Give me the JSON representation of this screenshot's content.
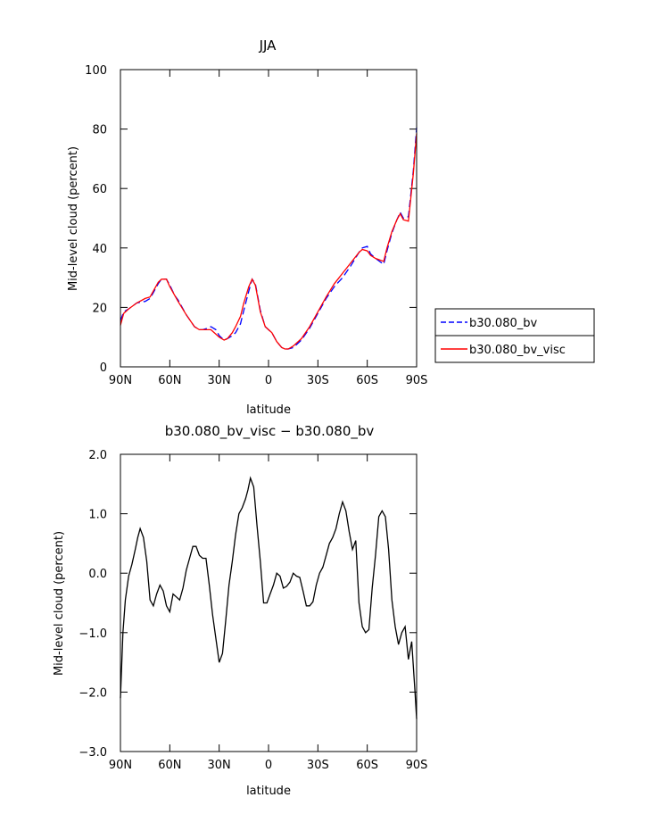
{
  "chart_data": [
    {
      "type": "line",
      "title": "JJA",
      "xlabel": "latitude",
      "ylabel": "Mid-level cloud (percent)",
      "xlim": [
        90,
        -90
      ],
      "ylim": [
        0,
        100
      ],
      "xticks": [
        {
          "value": 90,
          "label": "90N"
        },
        {
          "value": 60,
          "label": "60N"
        },
        {
          "value": 30,
          "label": "30N"
        },
        {
          "value": 0,
          "label": "0"
        },
        {
          "value": -30,
          "label": "30S"
        },
        {
          "value": -60,
          "label": "60S"
        },
        {
          "value": -90,
          "label": "90S"
        }
      ],
      "yticks": [
        {
          "value": 0,
          "label": "0"
        },
        {
          "value": 20,
          "label": "20"
        },
        {
          "value": 40,
          "label": "40"
        },
        {
          "value": 60,
          "label": "60"
        },
        {
          "value": 80,
          "label": "80"
        },
        {
          "value": 100,
          "label": "100"
        }
      ],
      "legend_position": "right",
      "series": [
        {
          "name": "b30.080_bv",
          "color": "#0000ff",
          "dash": "dashed",
          "x": [
            90,
            88,
            85,
            80,
            75,
            72,
            70,
            67,
            65,
            62,
            60,
            57,
            55,
            50,
            45,
            42,
            40,
            37,
            35,
            32,
            30,
            27,
            25,
            22,
            20,
            17,
            15,
            12,
            10,
            8,
            7,
            5,
            2,
            0,
            -2,
            -5,
            -8,
            -10,
            -12,
            -15,
            -18,
            -20,
            -25,
            -30,
            -35,
            -40,
            -45,
            -50,
            -55,
            -57,
            -60,
            -62,
            -65,
            -70,
            -72,
            -75,
            -78,
            -80,
            -82,
            -85,
            -88,
            -90
          ],
          "y": [
            15.5,
            18.5,
            19.5,
            21.5,
            22.0,
            23.0,
            25.0,
            28.0,
            29.5,
            29.5,
            27.5,
            24.0,
            22.5,
            17.5,
            13.5,
            12.5,
            12.5,
            13.0,
            13.5,
            12.5,
            10.5,
            9.0,
            9.5,
            10.5,
            11.5,
            14.5,
            19.0,
            25.5,
            29.5,
            28.0,
            25.0,
            19.0,
            13.5,
            12.5,
            11.5,
            8.5,
            6.5,
            6.0,
            6.0,
            6.5,
            8.0,
            9.0,
            13.0,
            18.0,
            23.0,
            27.0,
            30.0,
            34.0,
            38.5,
            40.0,
            40.5,
            38.0,
            36.5,
            34.5,
            39.0,
            45.0,
            49.5,
            52.0,
            50.0,
            50.5,
            66.0,
            80.5
          ]
        },
        {
          "name": "b30.080_bv_visc",
          "color": "#ff0000",
          "dash": "solid",
          "x": [
            90,
            88,
            85,
            80,
            75,
            72,
            70,
            67,
            65,
            62,
            60,
            57,
            55,
            50,
            45,
            42,
            40,
            37,
            35,
            32,
            30,
            27,
            25,
            22,
            20,
            17,
            15,
            12,
            10,
            8,
            7,
            5,
            2,
            0,
            -2,
            -5,
            -8,
            -10,
            -12,
            -15,
            -18,
            -20,
            -25,
            -30,
            -35,
            -40,
            -45,
            -50,
            -55,
            -57,
            -60,
            -62,
            -65,
            -70,
            -72,
            -75,
            -78,
            -80,
            -82,
            -85,
            -88,
            -90
          ],
          "y": [
            14.0,
            18.0,
            19.5,
            21.5,
            23.0,
            23.5,
            25.5,
            28.5,
            29.5,
            29.5,
            27.0,
            24.0,
            22.0,
            17.5,
            13.5,
            12.5,
            12.5,
            12.5,
            12.5,
            11.0,
            10.0,
            9.0,
            9.5,
            11.5,
            13.5,
            17.0,
            21.5,
            27.0,
            29.5,
            27.5,
            24.5,
            18.5,
            13.5,
            12.5,
            11.5,
            8.5,
            6.5,
            6.0,
            6.0,
            7.0,
            8.5,
            9.5,
            13.5,
            18.5,
            23.5,
            28.0,
            31.5,
            35.0,
            38.5,
            39.5,
            39.0,
            37.5,
            36.5,
            35.5,
            40.0,
            45.5,
            49.5,
            51.5,
            49.5,
            49.0,
            65.0,
            78.5
          ]
        }
      ]
    },
    {
      "type": "line",
      "title": "b30.080_bv_visc − b30.080_bv",
      "xlabel": "latitude",
      "ylabel": "Mid-level cloud (percent)",
      "xlim": [
        90,
        -90
      ],
      "ylim": [
        -3,
        2
      ],
      "xticks": [
        {
          "value": 90,
          "label": "90N"
        },
        {
          "value": 60,
          "label": "60N"
        },
        {
          "value": 30,
          "label": "30N"
        },
        {
          "value": 0,
          "label": "0"
        },
        {
          "value": -30,
          "label": "30S"
        },
        {
          "value": -60,
          "label": "60S"
        },
        {
          "value": -90,
          "label": "90S"
        }
      ],
      "yticks": [
        {
          "value": 2.0,
          "label": "2.0"
        },
        {
          "value": 1.0,
          "label": "1.0"
        },
        {
          "value": 0.0,
          "label": "0.0"
        },
        {
          "value": -1.0,
          "label": "−1.0"
        },
        {
          "value": -2.0,
          "label": "−2.0"
        },
        {
          "value": -3.0,
          "label": "−3.0"
        }
      ],
      "series": [
        {
          "name": "",
          "color": "#000000",
          "dash": "solid",
          "x": [
            90,
            88.5,
            87,
            85,
            83,
            81,
            79.5,
            78,
            76,
            74,
            72,
            70,
            68,
            66,
            64,
            62,
            60,
            58,
            56,
            54,
            52,
            50,
            48,
            46,
            44,
            42,
            40,
            38,
            36,
            34,
            32,
            30,
            28,
            26,
            24,
            22,
            20,
            18,
            16,
            14,
            12.5,
            11,
            9,
            7,
            5,
            3,
            1,
            -1,
            -3,
            -5,
            -7,
            -9,
            -11,
            -13,
            -15,
            -17,
            -19,
            -21,
            -23,
            -25,
            -27,
            -29,
            -31,
            -33,
            -35,
            -37,
            -39,
            -41,
            -43,
            -45,
            -47,
            -49,
            -51,
            -53,
            -55,
            -57,
            -59,
            -61,
            -63,
            -65,
            -67,
            -69,
            -71,
            -73,
            -75,
            -77,
            -79,
            -81,
            -83,
            -85,
            -87,
            -89,
            -90
          ],
          "y": [
            -2.1,
            -1.0,
            -0.45,
            -0.05,
            0.15,
            0.4,
            0.6,
            0.75,
            0.6,
            0.2,
            -0.45,
            -0.55,
            -0.35,
            -0.2,
            -0.3,
            -0.55,
            -0.65,
            -0.35,
            -0.4,
            -0.45,
            -0.25,
            0.05,
            0.25,
            0.45,
            0.45,
            0.3,
            0.25,
            0.25,
            -0.2,
            -0.7,
            -1.1,
            -1.5,
            -1.35,
            -0.8,
            -0.2,
            0.2,
            0.65,
            1.0,
            1.1,
            1.25,
            1.4,
            1.6,
            1.45,
            0.8,
            0.2,
            -0.5,
            -0.5,
            -0.35,
            -0.2,
            0.0,
            -0.05,
            -0.25,
            -0.22,
            -0.15,
            0.0,
            -0.05,
            -0.07,
            -0.3,
            -0.55,
            -0.55,
            -0.48,
            -0.2,
            0.0,
            0.1,
            0.3,
            0.5,
            0.6,
            0.75,
            1.0,
            1.2,
            1.05,
            0.7,
            0.4,
            0.55,
            -0.5,
            -0.9,
            -1.0,
            -0.95,
            -0.25,
            0.3,
            0.95,
            1.05,
            0.95,
            0.4,
            -0.45,
            -0.9,
            -1.2,
            -1.0,
            -0.9,
            -1.45,
            -1.15,
            -2.0,
            -2.45
          ]
        }
      ]
    }
  ]
}
